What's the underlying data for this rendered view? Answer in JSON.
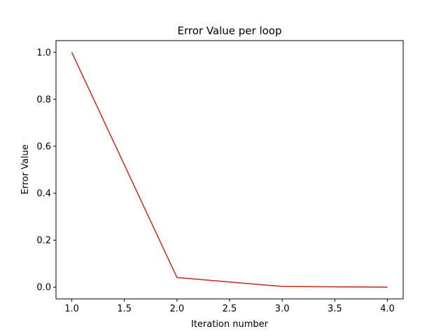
{
  "chart_data": {
    "type": "line",
    "title": "Error Value per loop",
    "xlabel": "Iteration number",
    "ylabel": "Error Value",
    "xlim": [
      0.85,
      4.15
    ],
    "ylim": [
      -0.05,
      1.05
    ],
    "xticks": [
      1.0,
      1.5,
      2.0,
      2.5,
      3.0,
      3.5,
      4.0
    ],
    "xtick_labels": [
      "1.0",
      "1.5",
      "2.0",
      "2.5",
      "3.0",
      "3.5",
      "4.0"
    ],
    "yticks": [
      0.0,
      0.2,
      0.4,
      0.6,
      0.8,
      1.0
    ],
    "ytick_labels": [
      "0.0",
      "0.2",
      "0.4",
      "0.6",
      "0.8",
      "1.0"
    ],
    "grid": false,
    "series": [
      {
        "color": "#c0392b",
        "x": [
          1.0,
          2.0,
          3.0,
          4.0
        ],
        "y": [
          1.0,
          0.041,
          0.003,
          0.0
        ]
      }
    ]
  }
}
